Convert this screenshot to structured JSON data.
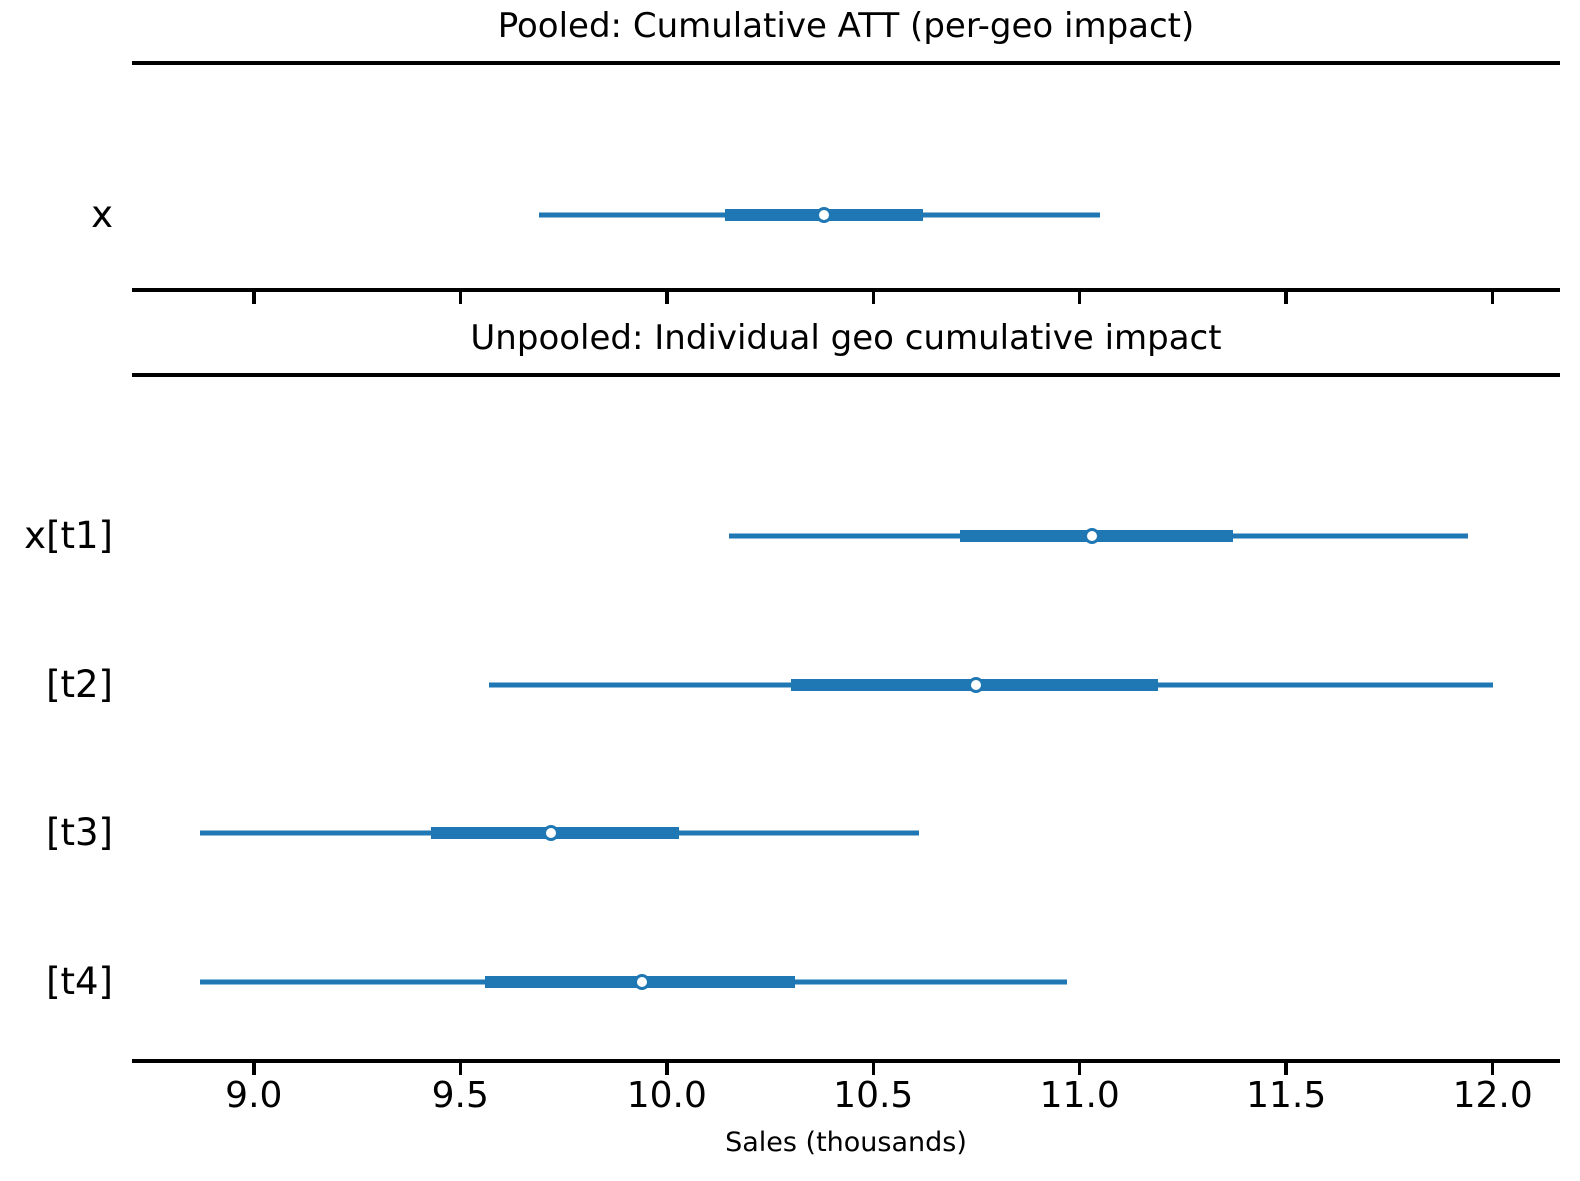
{
  "chart_data": {
    "type": "forest",
    "xlabel": "Sales (thousands)",
    "xlim": [
      8.705,
      12.163
    ],
    "xticks": [
      9.0,
      9.5,
      10.0,
      10.5,
      11.0,
      11.5,
      12.0
    ],
    "xtick_labels": [
      "9.0",
      "9.5",
      "10.0",
      "10.5",
      "11.0",
      "11.5",
      "12.0"
    ],
    "grid": "off",
    "legend": "none",
    "marker_style": "open-circle",
    "interval_color": "#1f77b4",
    "axis_color": "#000000",
    "background_color": "#ffffff",
    "panels": [
      {
        "title": "Pooled: Cumulative ATT (per-geo impact)",
        "rows": [
          {
            "label": "x",
            "mean": 10.38,
            "hdi_outer": [
              9.69,
              11.05
            ],
            "hdi_inner": [
              10.14,
              10.62
            ]
          }
        ]
      },
      {
        "title": "Unpooled: Individual geo cumulative impact",
        "rows": [
          {
            "label": "x[t1]",
            "mean": 11.03,
            "hdi_outer": [
              10.15,
              11.94
            ],
            "hdi_inner": [
              10.71,
              11.37
            ]
          },
          {
            "label": "[t2]",
            "mean": 10.75,
            "hdi_outer": [
              9.57,
              12.0
            ],
            "hdi_inner": [
              10.3,
              11.19
            ]
          },
          {
            "label": "[t3]",
            "mean": 9.72,
            "hdi_outer": [
              8.87,
              10.61
            ],
            "hdi_inner": [
              9.43,
              10.03
            ]
          },
          {
            "label": "[t4]",
            "mean": 9.94,
            "hdi_outer": [
              8.87,
              10.97
            ],
            "hdi_inner": [
              9.56,
              10.31
            ]
          }
        ]
      }
    ]
  }
}
